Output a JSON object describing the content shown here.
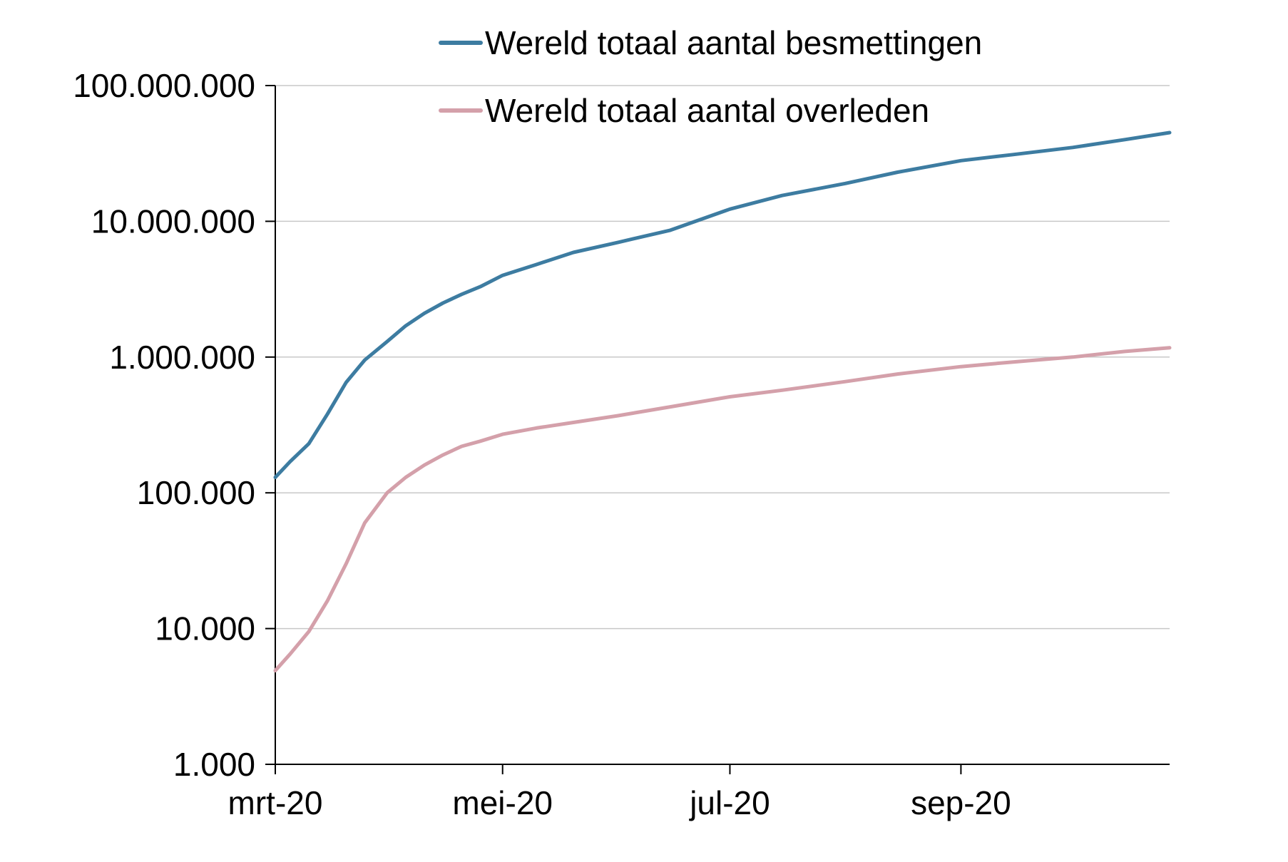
{
  "chart_data": {
    "type": "line",
    "x_axis_kind": "date",
    "y_scale": "log",
    "ylim": [
      1000,
      100000000
    ],
    "y_ticks": [
      {
        "value": 1000,
        "label": "1.000"
      },
      {
        "value": 10000,
        "label": "10.000"
      },
      {
        "value": 100000,
        "label": "100.000"
      },
      {
        "value": 1000000,
        "label": "1.000.000"
      },
      {
        "value": 10000000,
        "label": "10.000.000"
      },
      {
        "value": 100000000,
        "label": "100.000.000"
      }
    ],
    "xlim": [
      "2020-03-01",
      "2020-10-27"
    ],
    "x_ticks": [
      {
        "date": "2020-03-01",
        "label": "mrt-20"
      },
      {
        "date": "2020-05-01",
        "label": "mei-20"
      },
      {
        "date": "2020-07-01",
        "label": "jul-20"
      },
      {
        "date": "2020-09-01",
        "label": "sep-20"
      }
    ],
    "grid": true,
    "legend_position": "top",
    "series": [
      {
        "name": "Wereld totaal aantal besmettingen",
        "color": "#3d7ca1",
        "points": [
          [
            "2020-03-01",
            130000
          ],
          [
            "2020-03-05",
            170000
          ],
          [
            "2020-03-10",
            230000
          ],
          [
            "2020-03-15",
            380000
          ],
          [
            "2020-03-20",
            650000
          ],
          [
            "2020-03-25",
            950000
          ],
          [
            "2020-03-31",
            1300000
          ],
          [
            "2020-04-05",
            1700000
          ],
          [
            "2020-04-10",
            2100000
          ],
          [
            "2020-04-15",
            2500000
          ],
          [
            "2020-04-20",
            2900000
          ],
          [
            "2020-04-25",
            3300000
          ],
          [
            "2020-05-01",
            4000000
          ],
          [
            "2020-05-10",
            4800000
          ],
          [
            "2020-05-20",
            5900000
          ],
          [
            "2020-06-01",
            7000000
          ],
          [
            "2020-06-15",
            8600000
          ],
          [
            "2020-07-01",
            12300000
          ],
          [
            "2020-07-15",
            15500000
          ],
          [
            "2020-08-01",
            19000000
          ],
          [
            "2020-08-15",
            23000000
          ],
          [
            "2020-09-01",
            28000000
          ],
          [
            "2020-09-15",
            31000000
          ],
          [
            "2020-10-01",
            35000000
          ],
          [
            "2020-10-15",
            40000000
          ],
          [
            "2020-10-27",
            45000000
          ]
        ]
      },
      {
        "name": "Wereld totaal aantal overleden",
        "color": "#d4a0aa",
        "points": [
          [
            "2020-03-01",
            4900
          ],
          [
            "2020-03-05",
            6500
          ],
          [
            "2020-03-10",
            9500
          ],
          [
            "2020-03-15",
            16000
          ],
          [
            "2020-03-20",
            30000
          ],
          [
            "2020-03-25",
            60000
          ],
          [
            "2020-03-31",
            100000
          ],
          [
            "2020-04-05",
            130000
          ],
          [
            "2020-04-10",
            160000
          ],
          [
            "2020-04-15",
            190000
          ],
          [
            "2020-04-20",
            220000
          ],
          [
            "2020-04-25",
            240000
          ],
          [
            "2020-05-01",
            270000
          ],
          [
            "2020-05-10",
            300000
          ],
          [
            "2020-05-20",
            330000
          ],
          [
            "2020-06-01",
            370000
          ],
          [
            "2020-06-15",
            430000
          ],
          [
            "2020-07-01",
            510000
          ],
          [
            "2020-07-15",
            570000
          ],
          [
            "2020-08-01",
            660000
          ],
          [
            "2020-08-15",
            750000
          ],
          [
            "2020-09-01",
            850000
          ],
          [
            "2020-09-15",
            920000
          ],
          [
            "2020-10-01",
            1000000
          ],
          [
            "2020-10-15",
            1100000
          ],
          [
            "2020-10-27",
            1170000
          ]
        ]
      }
    ]
  }
}
